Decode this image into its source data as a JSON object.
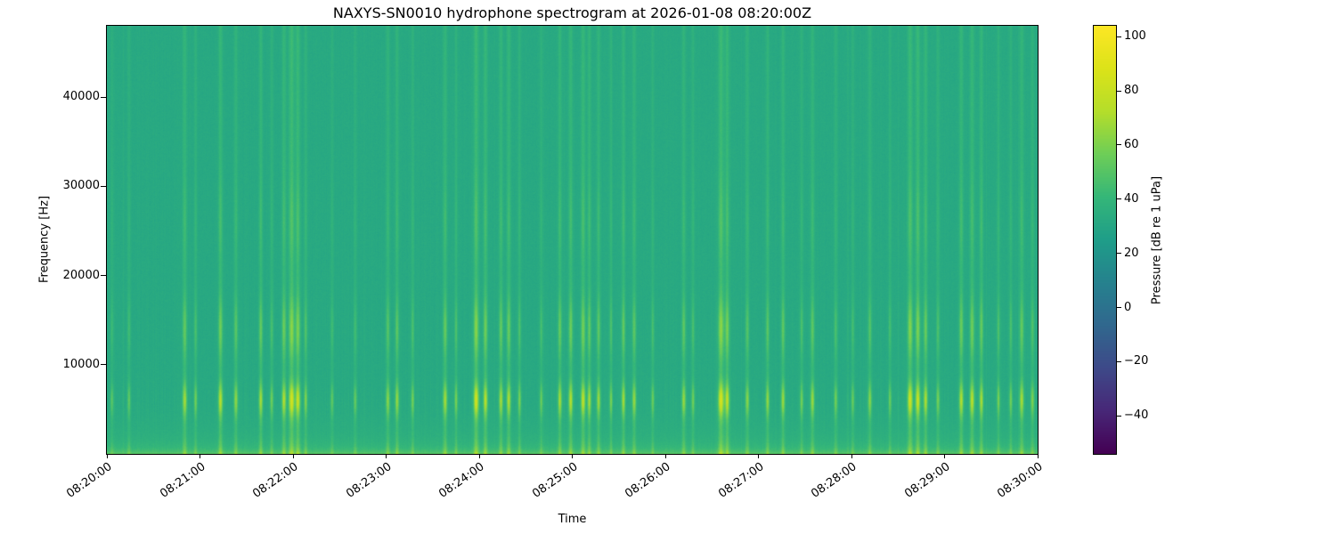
{
  "chart_data": {
    "type": "heatmap",
    "title": "NAXYS-SN0010 hydrophone spectrogram at 2026-01-08 08:20:00Z",
    "xlabel": "Time",
    "ylabel": "Frequency [Hz]",
    "colormap": "viridis",
    "duration_s": 600,
    "x_tick_labels": [
      "08:20:00",
      "08:21:00",
      "08:22:00",
      "08:23:00",
      "08:24:00",
      "08:25:00",
      "08:26:00",
      "08:27:00",
      "08:28:00",
      "08:29:00",
      "08:30:00"
    ],
    "freq_min_hz": 0,
    "freq_max_hz": 48000,
    "y_ticks": [
      {
        "hz": 10000,
        "label": "10000"
      },
      {
        "hz": 20000,
        "label": "20000"
      },
      {
        "hz": 30000,
        "label": "30000"
      },
      {
        "hz": 40000,
        "label": "40000"
      }
    ],
    "colorbar": {
      "label": "Pressure [dB re 1 uPa]",
      "vmin": -54,
      "vmax": 104,
      "ticks": [
        {
          "value": 100,
          "label": "100"
        },
        {
          "value": 80,
          "label": "80"
        },
        {
          "value": 60,
          "label": "60"
        },
        {
          "value": 40,
          "label": "40"
        },
        {
          "value": 20,
          "label": "20"
        },
        {
          "value": 0,
          "label": "0"
        },
        {
          "value": -20,
          "label": "−20"
        },
        {
          "value": -40,
          "label": "−40"
        }
      ]
    },
    "background_db": 32,
    "pixel_noise_db": 1.4,
    "column_noise_db": 1.5,
    "low_freq_band": [
      {
        "db": 10,
        "scale_hz": 500
      },
      {
        "db": 8,
        "scale_hz": 2500
      }
    ],
    "event_envelope": {
      "base": 0.2,
      "low_freq": {
        "weight": 0.25,
        "scale_hz": 1500
      },
      "bands": [
        {
          "center_hz": 6000,
          "sigma_hz": 1300,
          "weight": 0.75
        },
        {
          "center_hz": 14000,
          "sigma_hz": 2300,
          "weight": 0.38
        },
        {
          "center_hz": 26000,
          "sigma_hz": 3000,
          "weight": 0.12
        }
      ]
    },
    "events_t_db_w": [
      [
        3,
        20,
        1.0
      ],
      [
        14,
        22,
        1.0
      ],
      [
        50,
        38,
        1.3
      ],
      [
        57,
        26,
        1.0
      ],
      [
        73,
        42,
        1.4
      ],
      [
        83,
        34,
        1.2
      ],
      [
        99,
        38,
        1.2
      ],
      [
        106,
        26,
        1.0
      ],
      [
        114,
        42,
        1.3
      ],
      [
        119,
        54,
        1.7
      ],
      [
        123,
        48,
        1.5
      ],
      [
        128,
        30,
        1.0
      ],
      [
        145,
        22,
        1.0
      ],
      [
        160,
        24,
        1.0
      ],
      [
        181,
        32,
        1.2
      ],
      [
        187,
        34,
        1.2
      ],
      [
        197,
        26,
        1.0
      ],
      [
        218,
        38,
        1.3
      ],
      [
        225,
        28,
        1.0
      ],
      [
        238,
        52,
        1.6
      ],
      [
        244,
        42,
        1.3
      ],
      [
        254,
        38,
        1.2
      ],
      [
        259,
        40,
        1.3
      ],
      [
        266,
        28,
        1.0
      ],
      [
        280,
        24,
        1.0
      ],
      [
        292,
        38,
        1.2
      ],
      [
        299,
        42,
        1.3
      ],
      [
        307,
        44,
        1.4
      ],
      [
        311,
        38,
        1.2
      ],
      [
        317,
        36,
        1.2
      ],
      [
        325,
        26,
        1.0
      ],
      [
        333,
        38,
        1.2
      ],
      [
        340,
        36,
        1.2
      ],
      [
        352,
        24,
        1.0
      ],
      [
        372,
        36,
        1.2
      ],
      [
        378,
        26,
        1.0
      ],
      [
        396,
        56,
        1.8
      ],
      [
        400,
        46,
        1.4
      ],
      [
        413,
        32,
        1.1
      ],
      [
        426,
        34,
        1.1
      ],
      [
        436,
        36,
        1.2
      ],
      [
        448,
        28,
        1.0
      ],
      [
        455,
        36,
        1.2
      ],
      [
        470,
        26,
        1.0
      ],
      [
        481,
        24,
        1.0
      ],
      [
        492,
        32,
        1.1
      ],
      [
        505,
        24,
        1.0
      ],
      [
        518,
        52,
        1.6
      ],
      [
        523,
        48,
        1.5
      ],
      [
        528,
        40,
        1.3
      ],
      [
        536,
        28,
        1.0
      ],
      [
        551,
        42,
        1.3
      ],
      [
        558,
        44,
        1.4
      ],
      [
        564,
        38,
        1.2
      ],
      [
        575,
        28,
        1.0
      ],
      [
        583,
        26,
        1.0
      ],
      [
        590,
        38,
        1.3
      ],
      [
        597,
        30,
        1.1
      ]
    ],
    "colormap_stops": [
      [
        0.0,
        "#440154"
      ],
      [
        0.1,
        "#482878"
      ],
      [
        0.2,
        "#3e4a89"
      ],
      [
        0.3,
        "#31688e"
      ],
      [
        0.4,
        "#26828e"
      ],
      [
        0.5,
        "#1f9e89"
      ],
      [
        0.6,
        "#35b779"
      ],
      [
        0.7,
        "#6ece58"
      ],
      [
        0.8,
        "#b5de2b"
      ],
      [
        0.9,
        "#dce319"
      ],
      [
        1.0,
        "#fde725"
      ]
    ]
  }
}
